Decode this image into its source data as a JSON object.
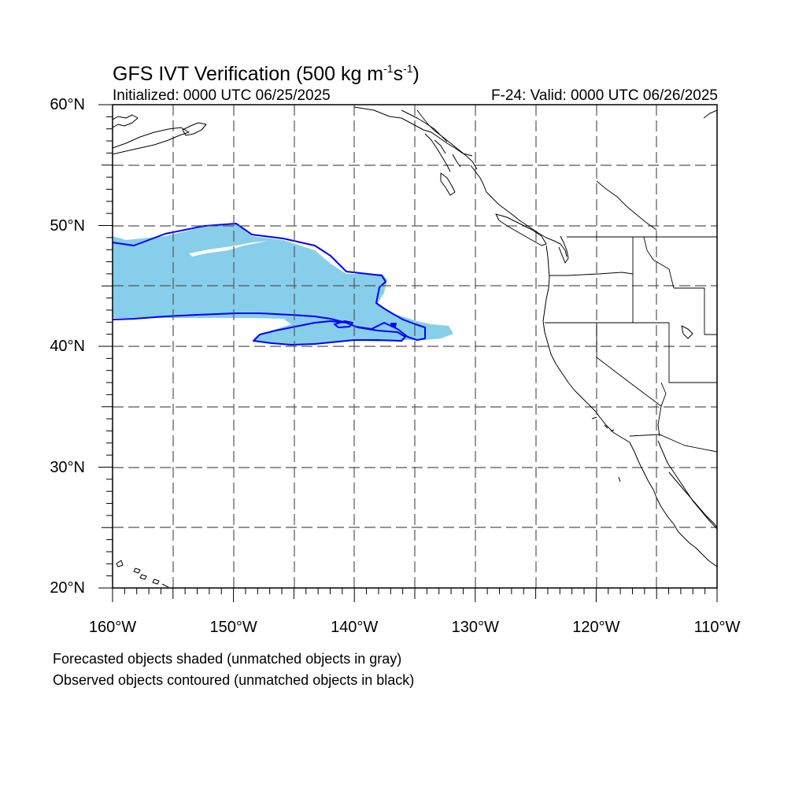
{
  "title": {
    "main": "GFS IVT Verification (500 kg m",
    "exp1": "-1",
    "mid": "s",
    "exp2": "-1",
    "end": ")"
  },
  "subtitle": {
    "left": "Initialized: 0000 UTC 06/25/2025",
    "right": "F-24: Valid: 0000 UTC 06/26/2025"
  },
  "axes": {
    "lon_range": [
      -160,
      -110
    ],
    "lat_range": [
      20,
      60
    ],
    "grid_dashed": true,
    "lat_labels": [
      {
        "lat": 60,
        "text": "60°N"
      },
      {
        "lat": 50,
        "text": "50°N"
      },
      {
        "lat": 40,
        "text": "40°N"
      },
      {
        "lat": 30,
        "text": "30°N"
      },
      {
        "lat": 20,
        "text": "20°N"
      }
    ],
    "lon_labels": [
      {
        "lon": -160,
        "text": "160°W"
      },
      {
        "lon": -150,
        "text": "150°W"
      },
      {
        "lon": -140,
        "text": "140°W"
      },
      {
        "lon": -130,
        "text": "130°W"
      },
      {
        "lon": -120,
        "text": "120°W"
      },
      {
        "lon": -110,
        "text": "110°W"
      }
    ]
  },
  "objects": {
    "forecast_fill_color": "#87ceeb",
    "observed_contour_color": "#0000ff"
  },
  "notes": {
    "line1": "Forecasted objects shaded (unmatched objects in gray)",
    "line2": "Observed objects contoured (unmatched objects in black)"
  }
}
